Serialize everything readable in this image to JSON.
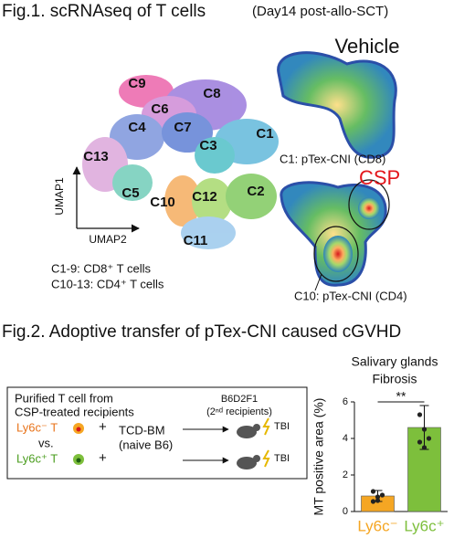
{
  "fig1": {
    "title": "Fig.1. scRNAseq of T cells",
    "subtitle": "(Day14 post-allo-SCT)",
    "clusters": [
      "C1",
      "C2",
      "C3",
      "C4",
      "C5",
      "C6",
      "C7",
      "C8",
      "C9",
      "C10",
      "C11",
      "C12",
      "C13"
    ],
    "axis_y": "UMAP1",
    "axis_x": "UMAP2",
    "legend": [
      "C1-9: CD8⁺ T cells",
      "C10-13: CD4⁺ T cells"
    ],
    "vehicle": "Vehicle",
    "csp": "CSP",
    "callout_cd8": "C1: pTex-CNI (CD8)",
    "callout_cd4": "C10: pTex-CNI (CD4)"
  },
  "fig2": {
    "title": "Fig.2. Adoptive transfer of pTex-CNI caused cGVHD",
    "schematic": {
      "source": [
        "Purified T cell from",
        "CSP-treated recipients"
      ],
      "group1": "Ly6c⁻ T",
      "vs": "vs.",
      "group2": "Ly6c⁺ T",
      "plus": "+",
      "bm": [
        "TCD-BM",
        "(naive B6)"
      ],
      "recipient": [
        "B6D2F1",
        "(2ⁿᵈ recipients)"
      ],
      "tbi": "TBI"
    }
  },
  "chart_data": {
    "type": "bar",
    "title": [
      "Salivary glands",
      "Fibrosis"
    ],
    "ylabel": "MT positive area (%)",
    "categories": [
      "Ly6c⁻",
      "Ly6c⁺"
    ],
    "values": [
      0.85,
      4.6
    ],
    "errors": [
      0.3,
      1.2
    ],
    "points": [
      [
        0.55,
        0.8,
        0.9,
        1.1,
        0.6
      ],
      [
        5.3,
        4.5,
        4.0,
        3.8,
        3.5
      ]
    ],
    "colors": [
      "#f5a623",
      "#7dbf3c"
    ],
    "ylim": [
      0,
      6
    ],
    "yticks": [
      0,
      2,
      4,
      6
    ],
    "significance": "**"
  }
}
